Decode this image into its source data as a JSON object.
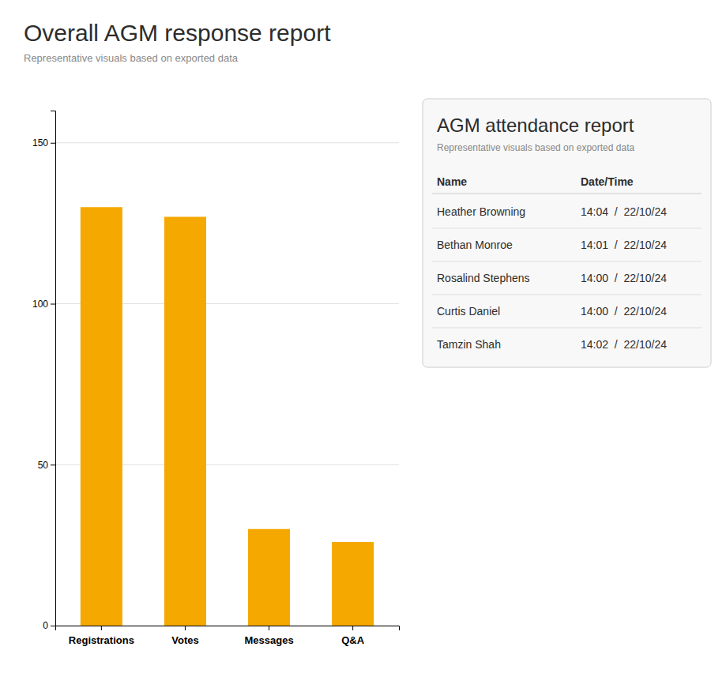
{
  "chart_data": {
    "type": "bar",
    "title": "Overall AGM response report",
    "subtitle": "Representative visuals based on exported data",
    "categories": [
      "Registrations",
      "Votes",
      "Messages",
      "Q&A"
    ],
    "values": [
      130,
      127,
      30,
      26
    ],
    "color": "#F5A800",
    "ylim": [
      0,
      160
    ],
    "yticks": [
      0,
      50,
      100,
      150
    ],
    "grid": true,
    "table": {
      "title": "AGM attendance report",
      "subtitle": "Representative visuals based on exported data",
      "headers": [
        "Name",
        "Date/Time"
      ],
      "rows": [
        [
          "Heather Browning",
          "14:04  /  22/10/24"
        ],
        [
          "Bethan Monroe",
          "14:01  /  22/10/24"
        ],
        [
          "Rosalind Stephens",
          "14:00  /  22/10/24"
        ],
        [
          "Curtis Daniel",
          "14:00  /  22/10/24"
        ],
        [
          "Tamzin Shah",
          "14:02  /  22/10/24"
        ]
      ]
    }
  }
}
